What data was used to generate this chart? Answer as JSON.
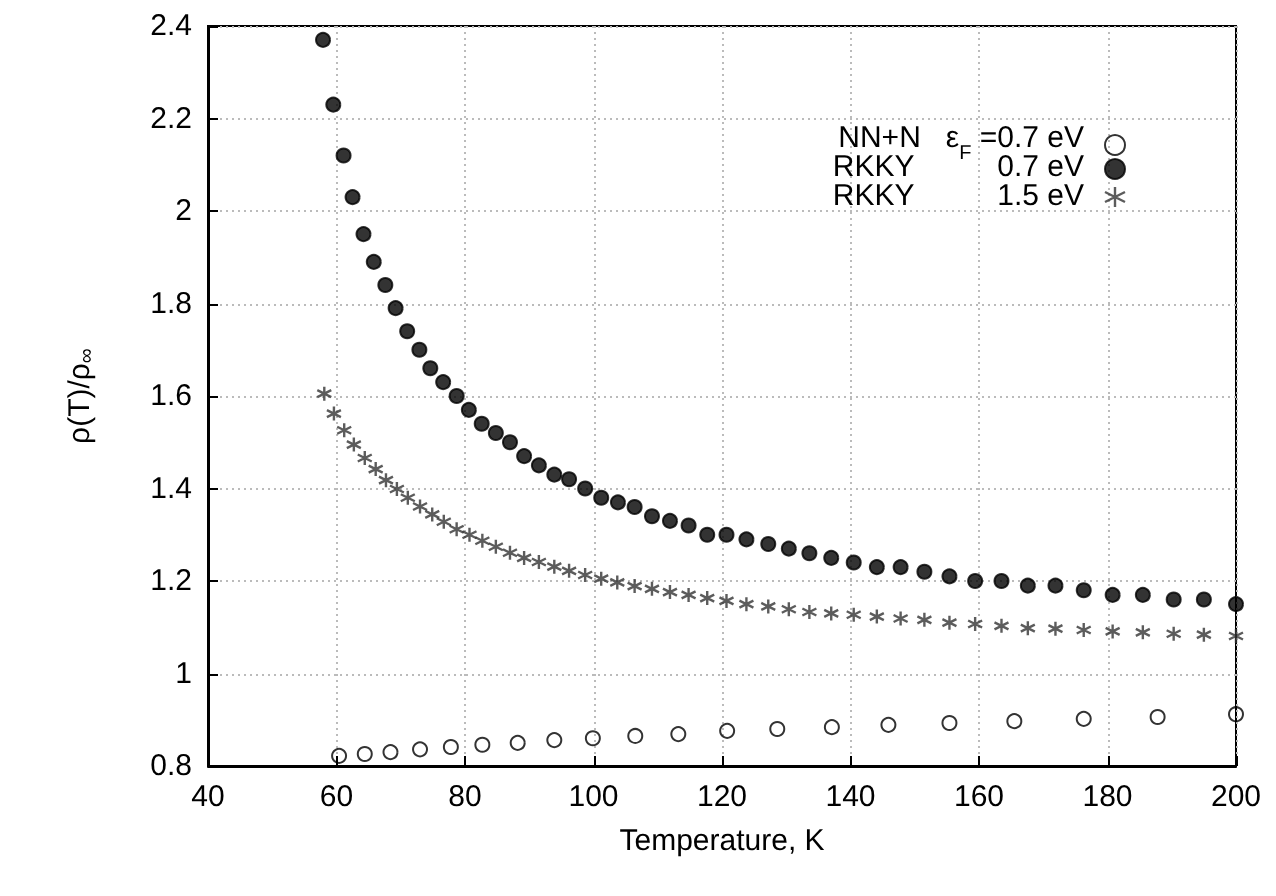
{
  "chart_data": {
    "type": "scatter",
    "xlabel": "Temperature, K",
    "ylabel": "ρ(T)/ρ$_{∞}$",
    "xlim": [
      40,
      200
    ],
    "xticks": [
      40,
      60,
      80,
      100,
      120,
      140,
      160,
      180,
      200
    ],
    "ylim": [
      0.8,
      2.4
    ],
    "yticks": [
      0.8,
      1,
      1.2,
      1.4,
      1.6,
      1.8,
      2,
      2.2,
      2.4
    ],
    "grid": true,
    "legend": "top right",
    "series": [
      {
        "name": "NN+N   ε$_{F}$ =0.7 eV",
        "color": "#000000",
        "marker": "open_circle",
        "x": [
          60.4,
          64.4,
          68.4,
          73.0,
          77.8,
          82.7,
          88.2,
          93.9,
          99.9,
          106.5,
          113.2,
          120.8,
          128.6,
          137.1,
          145.9,
          155.4,
          165.5,
          176.3,
          187.8,
          200
        ],
        "values": [
          0.822,
          0.826,
          0.83,
          0.836,
          0.841,
          0.846,
          0.85,
          0.856,
          0.86,
          0.865,
          0.869,
          0.876,
          0.88,
          0.884,
          0.889,
          0.893,
          0.897,
          0.902,
          0.906,
          0.912
        ]
      },
      {
        "name": "RKKY          0.7 eV",
        "color": "#000000",
        "marker": "circle",
        "x": [
          57.9,
          59.5,
          61.1,
          62.5,
          64.2,
          65.8,
          67.6,
          69.2,
          71.0,
          72.9,
          74.6,
          76.6,
          78.7,
          80.6,
          82.6,
          84.8,
          87.0,
          89.2,
          91.5,
          93.9,
          96.2,
          98.7,
          101.2,
          103.8,
          106.4,
          109.1,
          111.9,
          114.8,
          117.7,
          120.7,
          123.8,
          127.2,
          130.4,
          133.6,
          137.0,
          140.5,
          144.1,
          147.8,
          151.5,
          155.4,
          159.4,
          163.5,
          167.6,
          171.9,
          176.3,
          180.8,
          185.5,
          190.3,
          195.0,
          200
        ],
        "values": [
          2.37,
          2.23,
          2.12,
          2.03,
          1.95,
          1.89,
          1.84,
          1.79,
          1.74,
          1.7,
          1.66,
          1.63,
          1.6,
          1.57,
          1.54,
          1.52,
          1.5,
          1.47,
          1.45,
          1.43,
          1.42,
          1.4,
          1.38,
          1.37,
          1.36,
          1.34,
          1.33,
          1.32,
          1.3,
          1.3,
          1.29,
          1.28,
          1.27,
          1.26,
          1.25,
          1.24,
          1.23,
          1.23,
          1.22,
          1.21,
          1.2,
          1.2,
          1.19,
          1.19,
          1.18,
          1.17,
          1.17,
          1.16,
          1.16,
          1.15
        ]
      },
      {
        "name": "RKKY          1.5 eV",
        "color": "#333333",
        "marker": "cross",
        "x": [
          58.1,
          59.6,
          61.2,
          62.7,
          64.4,
          66.1,
          67.7,
          69.4,
          71.1,
          73.0,
          74.9,
          76.7,
          78.7,
          80.7,
          82.7,
          84.8,
          87.0,
          89.2,
          91.5,
          93.9,
          96.2,
          98.7,
          101.2,
          103.7,
          106.4,
          109.1,
          111.9,
          114.8,
          117.7,
          120.7,
          123.8,
          127.2,
          130.4,
          133.6,
          137.0,
          140.5,
          144.1,
          147.8,
          151.5,
          155.4,
          159.4,
          163.5,
          167.6,
          171.9,
          176.3,
          180.8,
          185.5,
          190.3,
          195.0,
          200
        ],
        "values": [
          1.605,
          1.562,
          1.526,
          1.495,
          1.466,
          1.442,
          1.418,
          1.399,
          1.38,
          1.361,
          1.344,
          1.328,
          1.312,
          1.3,
          1.287,
          1.274,
          1.261,
          1.25,
          1.241,
          1.231,
          1.222,
          1.213,
          1.205,
          1.197,
          1.189,
          1.183,
          1.176,
          1.17,
          1.163,
          1.157,
          1.15,
          1.145,
          1.139,
          1.133,
          1.13,
          1.127,
          1.123,
          1.119,
          1.116,
          1.11,
          1.107,
          1.103,
          1.098,
          1.097,
          1.094,
          1.091,
          1.089,
          1.086,
          1.084,
          1.081
        ]
      }
    ]
  }
}
